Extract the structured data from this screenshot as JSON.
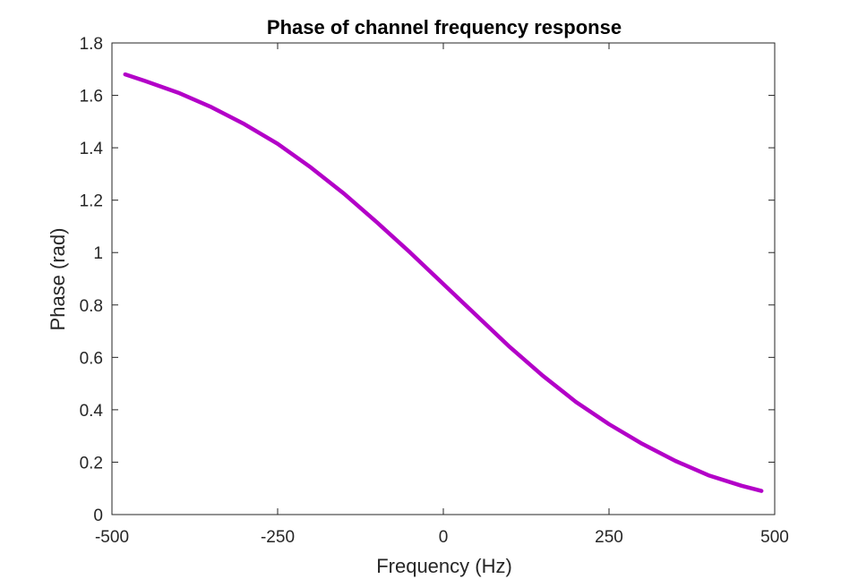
{
  "chart_data": {
    "type": "line",
    "title": "Phase of channel frequency response",
    "xlabel": "Frequency (Hz)",
    "ylabel": "Phase (rad)",
    "xlim": [
      -500,
      500
    ],
    "ylim": [
      0,
      1.8
    ],
    "xticks": [
      -500,
      -250,
      0,
      250,
      500
    ],
    "xtick_labels": [
      "-500",
      "-250",
      "0",
      "250",
      "500"
    ],
    "yticks": [
      0,
      0.2,
      0.4,
      0.6,
      0.8,
      1.0,
      1.2,
      1.4,
      1.6,
      1.8
    ],
    "ytick_labels": [
      "0",
      "0.2",
      "0.4",
      "0.6",
      "0.8",
      "1",
      "1.2",
      "1.4",
      "1.6",
      "1.8"
    ],
    "grid": false,
    "series": [
      {
        "color": "#B300C8",
        "x": [
          -480,
          -450,
          -400,
          -350,
          -300,
          -250,
          -200,
          -150,
          -100,
          -50,
          0,
          50,
          100,
          150,
          200,
          250,
          300,
          350,
          400,
          450,
          480
        ],
        "y": [
          1.68,
          1.655,
          1.61,
          1.555,
          1.49,
          1.415,
          1.325,
          1.225,
          1.115,
          1.0,
          0.88,
          0.76,
          0.64,
          0.53,
          0.43,
          0.345,
          0.27,
          0.205,
          0.15,
          0.11,
          0.09
        ]
      }
    ]
  }
}
